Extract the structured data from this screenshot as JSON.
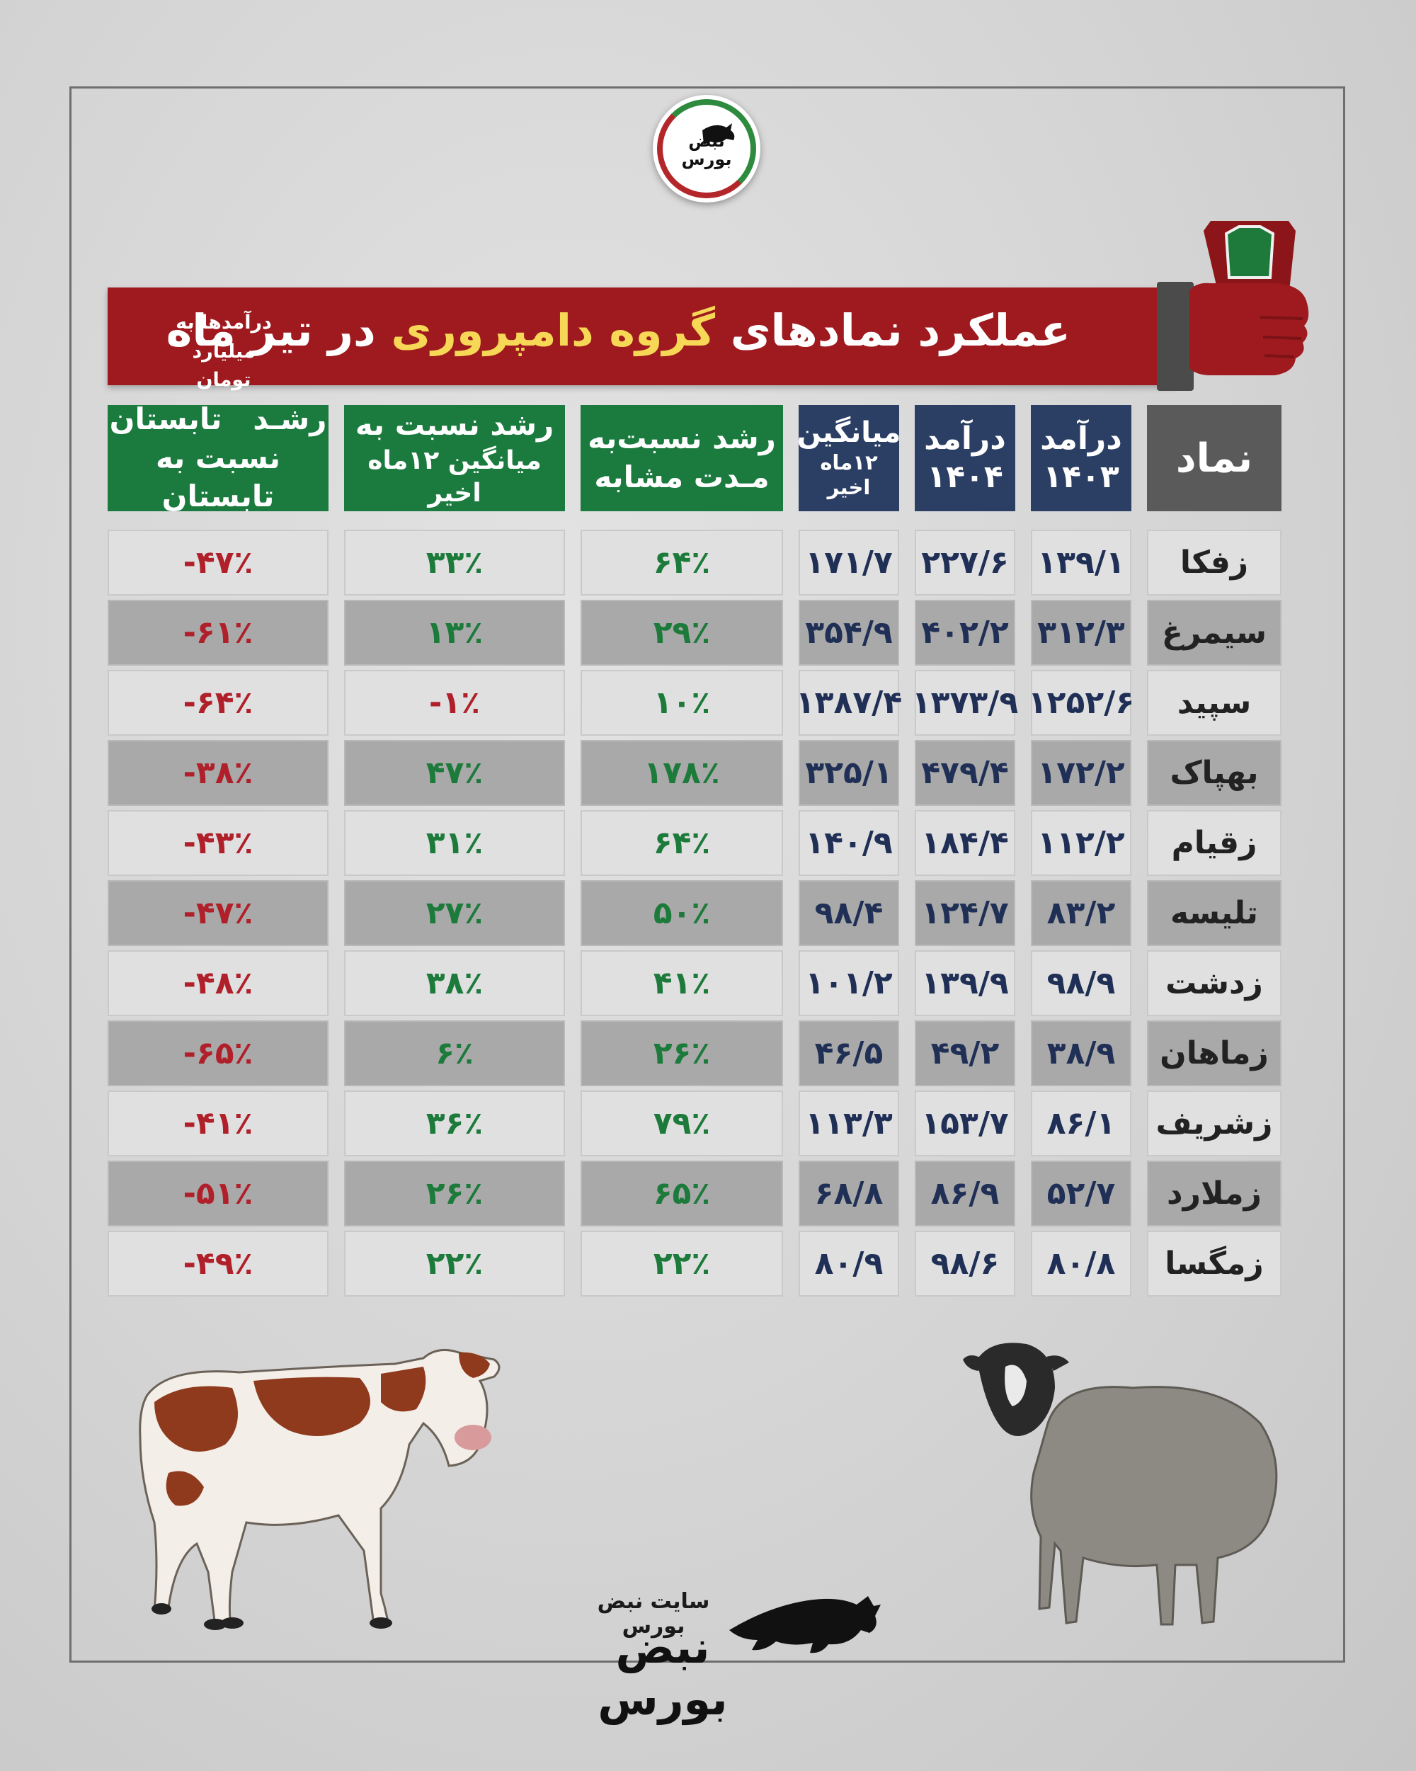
{
  "logo": {
    "line1": "نبض",
    "line2": "بورس"
  },
  "header": {
    "title_prefix": "عملکرد نمادهای",
    "title_highlight": "گروه دامپروری",
    "title_suffix": "در تیر ماه",
    "note_line1": "درآمدها به",
    "note_line2": "میلیارد تومان"
  },
  "columns": {
    "symbol": "نماد",
    "rev1403": {
      "l1": "درآمد",
      "l2": "۱۴۰۳"
    },
    "rev1404": {
      "l1": "درآمد",
      "l2": "۱۴۰۴"
    },
    "avg12": {
      "l1": "میانگین",
      "l2": "۱۲ماه اخیر"
    },
    "growth_same": {
      "l1": "رشد نسبت‌به",
      "l2": "مـدت مشابه"
    },
    "growth_avg": {
      "l1": "رشد نسبت به",
      "l2": "میانگین ۱۲ماه اخیر"
    },
    "growth_summer": {
      "l1": "رشـد   تابستان",
      "l2": "نسبت به تابستان"
    }
  },
  "rows": [
    {
      "symbol": "زفکا",
      "rev1403": "۱۳۹/۱",
      "rev1404": "۲۲۷/۶",
      "avg12": "۱۷۱/۷",
      "growth_same": "۶۴٪",
      "growth_avg": "۳۳٪",
      "growth_summer": "-۴۷٪"
    },
    {
      "symbol": "سیمرغ",
      "rev1403": "۳۱۲/۳",
      "rev1404": "۴۰۲/۲",
      "avg12": "۳۵۴/۹",
      "growth_same": "۲۹٪",
      "growth_avg": "۱۳٪",
      "growth_summer": "-۶۱٪"
    },
    {
      "symbol": "سپید",
      "rev1403": "۱۲۵۲/۶",
      "rev1404": "۱۳۷۳/۹",
      "avg12": "۱۳۸۷/۴",
      "growth_same": "۱۰٪",
      "growth_avg": "-۱٪",
      "growth_summer": "-۶۴٪"
    },
    {
      "symbol": "بهپاک",
      "rev1403": "۱۷۲/۲",
      "rev1404": "۴۷۹/۴",
      "avg12": "۳۲۵/۱",
      "growth_same": "۱۷۸٪",
      "growth_avg": "۴۷٪",
      "growth_summer": "-۳۸٪"
    },
    {
      "symbol": "زقیام",
      "rev1403": "۱۱۲/۲",
      "rev1404": "۱۸۴/۴",
      "avg12": "۱۴۰/۹",
      "growth_same": "۶۴٪",
      "growth_avg": "۳۱٪",
      "growth_summer": "-۴۳٪"
    },
    {
      "symbol": "تلیسه",
      "rev1403": "۸۳/۲",
      "rev1404": "۱۲۴/۷",
      "avg12": "۹۸/۴",
      "growth_same": "۵۰٪",
      "growth_avg": "۲۷٪",
      "growth_summer": "-۴۷٪"
    },
    {
      "symbol": "زدشت",
      "rev1403": "۹۸/۹",
      "rev1404": "۱۳۹/۹",
      "avg12": "۱۰۱/۲",
      "growth_same": "۴۱٪",
      "growth_avg": "۳۸٪",
      "growth_summer": "-۴۸٪"
    },
    {
      "symbol": "زماهان",
      "rev1403": "۳۸/۹",
      "rev1404": "۴۹/۲",
      "avg12": "۴۶/۵",
      "growth_same": "۲۶٪",
      "growth_avg": "۶٪",
      "growth_summer": "-۶۵٪"
    },
    {
      "symbol": "زشریف",
      "rev1403": "۸۶/۱",
      "rev1404": "۱۵۳/۷",
      "avg12": "۱۱۳/۳",
      "growth_same": "۷۹٪",
      "growth_avg": "۳۶٪",
      "growth_summer": "-۴۱٪"
    },
    {
      "symbol": "زملارد",
      "rev1403": "۵۲/۷",
      "rev1404": "۸۶/۹",
      "avg12": "۶۸/۸",
      "growth_same": "۶۵٪",
      "growth_avg": "۲۶٪",
      "growth_summer": "-۵۱٪"
    },
    {
      "symbol": "زمگسا",
      "rev1403": "۸۰/۸",
      "rev1404": "۹۸/۶",
      "avg12": "۸۰/۹",
      "growth_same": "۲۲٪",
      "growth_avg": "۲۲٪",
      "growth_summer": "-۴۹٪"
    }
  ],
  "footer": {
    "site": "سایت نبض بورس",
    "brand": "نبض بورس"
  },
  "colors": {
    "banner": "#9e1a1e",
    "highlight": "#f7d756",
    "navy": "#2b3e64",
    "green": "#1b7a3e",
    "positive": "#1c7a3b",
    "negative": "#b0202a"
  },
  "icons": [
    "bull-logo-icon",
    "cow-icon",
    "sheep-icon",
    "hand-scale-icon"
  ]
}
